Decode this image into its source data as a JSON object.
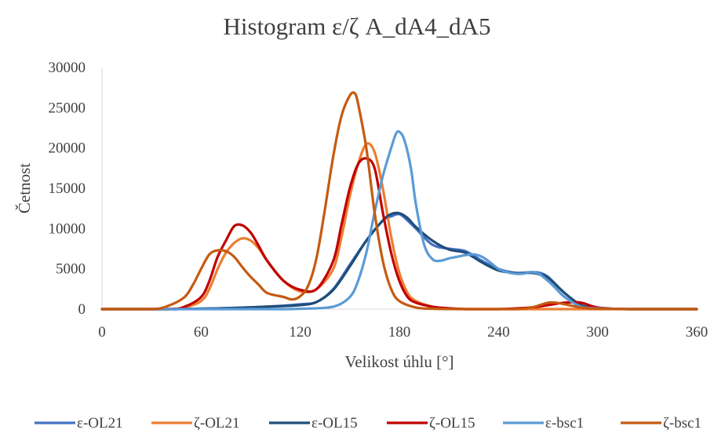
{
  "chart_data": {
    "type": "line",
    "title": "Histogram ε/ζ A_dA4_dA5",
    "xlabel": "Velikost úhlu [°]",
    "ylabel": "Četnost",
    "xlim": [
      0,
      360
    ],
    "ylim": [
      0,
      30000
    ],
    "xticks": [
      "0",
      "60",
      "120",
      "180",
      "240",
      "300",
      "360"
    ],
    "yticks": [
      "0",
      "5000",
      "10000",
      "15000",
      "20000",
      "25000",
      "30000"
    ],
    "grid": false,
    "legend_position": "bottom",
    "series": [
      {
        "name": "ε-OL21",
        "color": "#4472C4",
        "x": [
          0,
          40,
          60,
          80,
          100,
          120,
          130,
          140,
          150,
          160,
          170,
          175,
          180,
          185,
          190,
          200,
          210,
          220,
          230,
          240,
          250,
          255,
          260,
          265,
          270,
          280,
          290,
          300,
          320,
          360
        ],
        "y": [
          0,
          0,
          50,
          150,
          300,
          600,
          900,
          2500,
          5500,
          8500,
          11000,
          11500,
          11800,
          11000,
          10000,
          8000,
          7500,
          7200,
          6000,
          5000,
          4500,
          4500,
          4600,
          4500,
          4000,
          2000,
          500,
          100,
          0,
          0
        ]
      },
      {
        "name": "ζ-OL21",
        "color": "#ED7D31",
        "x": [
          0,
          40,
          50,
          60,
          65,
          70,
          75,
          80,
          85,
          90,
          95,
          100,
          110,
          120,
          130,
          140,
          145,
          150,
          155,
          160,
          165,
          170,
          175,
          180,
          185,
          190,
          200,
          210,
          220,
          240,
          270,
          300,
          360
        ],
        "y": [
          0,
          0,
          200,
          1000,
          2500,
          5000,
          7000,
          8200,
          8800,
          8500,
          7500,
          6000,
          3500,
          2200,
          2500,
          5000,
          9000,
          14000,
          18000,
          20500,
          19500,
          15000,
          9000,
          4500,
          2000,
          1000,
          300,
          100,
          0,
          0,
          0,
          0,
          0
        ]
      },
      {
        "name": "ε-OL15",
        "color": "#1F4E79",
        "x": [
          0,
          40,
          60,
          80,
          100,
          120,
          130,
          140,
          150,
          160,
          170,
          175,
          180,
          185,
          190,
          200,
          210,
          220,
          230,
          240,
          250,
          260,
          265,
          270,
          280,
          290,
          300,
          320,
          360
        ],
        "y": [
          0,
          0,
          50,
          150,
          300,
          500,
          900,
          2400,
          5300,
          8500,
          11000,
          11800,
          11900,
          11300,
          10200,
          8500,
          7400,
          7000,
          5800,
          4800,
          4500,
          4500,
          4300,
          3900,
          2000,
          500,
          100,
          0,
          0
        ]
      },
      {
        "name": "ζ-OL15",
        "color": "#C00000",
        "x": [
          0,
          40,
          50,
          60,
          65,
          70,
          75,
          80,
          85,
          90,
          95,
          100,
          110,
          120,
          130,
          140,
          145,
          150,
          155,
          160,
          165,
          170,
          175,
          180,
          185,
          190,
          200,
          210,
          220,
          240,
          260,
          270,
          280,
          290,
          300,
          320,
          360
        ],
        "y": [
          0,
          0,
          300,
          1500,
          3500,
          6500,
          8500,
          10300,
          10400,
          9500,
          7800,
          6000,
          3500,
          2400,
          2500,
          6000,
          10500,
          15000,
          18000,
          18700,
          17500,
          12000,
          7000,
          3500,
          1500,
          800,
          300,
          100,
          0,
          0,
          200,
          500,
          800,
          800,
          200,
          0,
          0
        ]
      },
      {
        "name": "ε-bsc1",
        "color": "#5B9BD5",
        "x": [
          0,
          100,
          120,
          140,
          150,
          155,
          160,
          165,
          170,
          175,
          178,
          180,
          183,
          187,
          190,
          195,
          200,
          205,
          210,
          215,
          220,
          225,
          230,
          235,
          240,
          245,
          250,
          255,
          260,
          265,
          270,
          275,
          280,
          290,
          300,
          320,
          360
        ],
        "y": [
          0,
          0,
          50,
          300,
          1500,
          3500,
          7000,
          12000,
          16500,
          20000,
          21800,
          22000,
          21000,
          17500,
          13000,
          8000,
          6200,
          6000,
          6300,
          6500,
          6700,
          6800,
          6500,
          5800,
          5000,
          4600,
          4400,
          4400,
          4600,
          4300,
          3500,
          2500,
          1500,
          300,
          100,
          0,
          0
        ]
      },
      {
        "name": "ζ-bsc1",
        "color": "#C55A11",
        "x": [
          0,
          30,
          40,
          50,
          55,
          60,
          65,
          70,
          75,
          80,
          85,
          90,
          95,
          100,
          110,
          115,
          120,
          125,
          130,
          135,
          140,
          145,
          150,
          153,
          155,
          160,
          165,
          170,
          175,
          180,
          190,
          200,
          220,
          250,
          260,
          265,
          270,
          275,
          280,
          290,
          300,
          320,
          360
        ],
        "y": [
          0,
          0,
          400,
          1500,
          3000,
          5000,
          6800,
          7300,
          7200,
          6500,
          5200,
          4000,
          3000,
          2000,
          1500,
          1200,
          1600,
          3000,
          6500,
          12500,
          19000,
          24000,
          26500,
          26800,
          25500,
          20000,
          12000,
          6000,
          2500,
          1000,
          200,
          50,
          0,
          0,
          200,
          500,
          800,
          800,
          600,
          200,
          50,
          0,
          0
        ]
      }
    ]
  }
}
